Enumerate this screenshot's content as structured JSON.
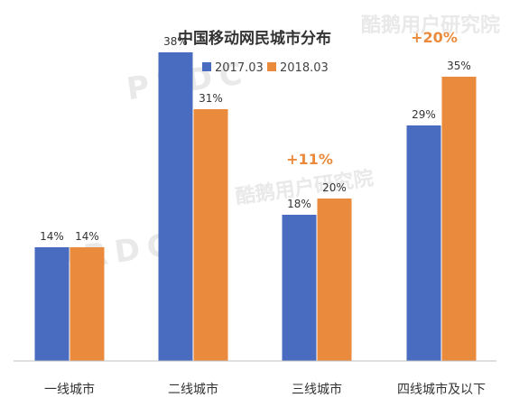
{
  "chart_data": {
    "type": "bar",
    "title": "中国移动网民城市分布",
    "categories": [
      "一线城市",
      "二线城市",
      "三线城市",
      "四线城市及以下"
    ],
    "series": [
      {
        "name": "2017.03",
        "values": [
          14,
          38,
          18,
          29
        ],
        "color": "#4a6cc0"
      },
      {
        "name": "2018.03",
        "values": [
          14,
          31,
          20,
          35
        ],
        "color": "#ea8a3c"
      }
    ],
    "value_suffix": "%",
    "annotations": [
      {
        "category": "三线城市",
        "text": "+11%"
      },
      {
        "category": "四线城市及以下",
        "text": "+20%"
      }
    ],
    "annotation_color": "#ea8a3c",
    "ylim": [
      0,
      40
    ],
    "grid": false,
    "legend_position": "top"
  },
  "watermarks": [
    "酷鹅用户研究院",
    "PRDC"
  ]
}
